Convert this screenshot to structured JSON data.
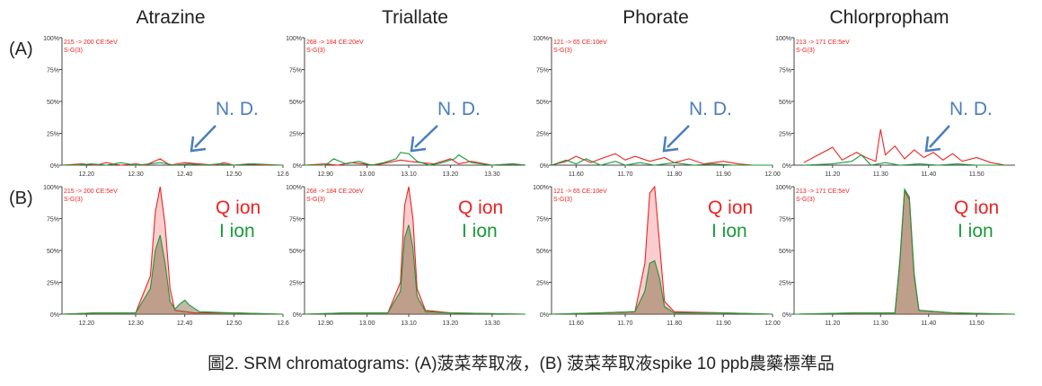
{
  "chart_data": [
    {
      "type": "line",
      "title": "Atrazine",
      "row": "(A)",
      "meta": [
        "215 -> 200 CE:5eV",
        "S-G(3)"
      ],
      "xticks": [
        "12.20",
        "12.30",
        "12.40",
        "12.50",
        "12.6"
      ],
      "xlim": [
        12.15,
        12.6
      ],
      "yticks": [
        "100%",
        "75%",
        "50%",
        "25%",
        "0%"
      ],
      "ylim": [
        0,
        100
      ],
      "annotation": "N. D.",
      "series": [
        {
          "color": "#ee2222",
          "x": [
            12.15,
            12.19,
            12.22,
            12.24,
            12.27,
            12.3,
            12.32,
            12.35,
            12.37,
            12.4,
            12.43,
            12.46,
            12.48,
            12.5,
            12.53,
            12.56,
            12.6
          ],
          "y": [
            0,
            1,
            0,
            2,
            0,
            1,
            0,
            5,
            0,
            2,
            1,
            0,
            2,
            0,
            1,
            0,
            0
          ]
        },
        {
          "color": "#1a9a3a",
          "x": [
            12.15,
            12.18,
            12.21,
            12.24,
            12.27,
            12.3,
            12.33,
            12.35,
            12.38,
            12.41,
            12.44,
            12.47,
            12.5,
            12.54,
            12.6
          ],
          "y": [
            0,
            0,
            1,
            0,
            2,
            0,
            1,
            2,
            0,
            1,
            0,
            1,
            0,
            1,
            0
          ]
        }
      ]
    },
    {
      "type": "line",
      "title": "Triallate",
      "row": "(A)",
      "meta": [
        "268 -> 184 CE:20eV",
        "S-G(3)"
      ],
      "xticks": [
        "12.90",
        "13.00",
        "13.10",
        "13.20",
        "13.30"
      ],
      "xlim": [
        12.85,
        13.38
      ],
      "yticks": [
        "100%",
        "75%",
        "50%",
        "25%",
        "0%"
      ],
      "ylim": [
        0,
        100
      ],
      "annotation": "N. D.",
      "series": [
        {
          "color": "#ee2222",
          "x": [
            12.85,
            12.9,
            12.93,
            12.96,
            12.99,
            13.02,
            13.05,
            13.08,
            13.1,
            13.13,
            13.16,
            13.2,
            13.22,
            13.25,
            13.3,
            13.35,
            13.38
          ],
          "y": [
            0,
            1,
            0,
            2,
            1,
            0,
            2,
            4,
            3,
            2,
            1,
            5,
            1,
            3,
            0,
            1,
            0
          ]
        },
        {
          "color": "#1a9a3a",
          "x": [
            12.85,
            12.9,
            12.92,
            12.95,
            12.98,
            13.01,
            13.04,
            13.07,
            13.08,
            13.1,
            13.12,
            13.15,
            13.18,
            13.21,
            13.22,
            13.25,
            13.3,
            13.35,
            13.38
          ],
          "y": [
            0,
            0,
            5,
            1,
            3,
            0,
            2,
            5,
            10,
            9,
            3,
            0,
            2,
            5,
            8,
            2,
            0,
            1,
            0
          ]
        }
      ]
    },
    {
      "type": "line",
      "title": "Phorate",
      "row": "(A)",
      "meta": [
        "121 -> 65 CE:10eV",
        "S-G(3)"
      ],
      "xticks": [
        "11.60",
        "11.70",
        "11.80",
        "11.90",
        "12.00"
      ],
      "xlim": [
        11.55,
        12.0
      ],
      "yticks": [
        "100%",
        "75%",
        "50%",
        "25%",
        "0%"
      ],
      "ylim": [
        0,
        100
      ],
      "annotation": "N. D.",
      "series": [
        {
          "color": "#ee2222",
          "x": [
            11.55,
            11.58,
            11.6,
            11.63,
            11.65,
            11.68,
            11.7,
            11.72,
            11.75,
            11.78,
            11.8,
            11.83,
            11.86,
            11.9,
            11.93,
            11.96,
            12.0
          ],
          "y": [
            0,
            3,
            7,
            2,
            5,
            9,
            4,
            7,
            3,
            6,
            2,
            5,
            1,
            3,
            1,
            0,
            0
          ]
        },
        {
          "color": "#1a9a3a",
          "x": [
            11.55,
            11.58,
            11.6,
            11.62,
            11.65,
            11.68,
            11.7,
            11.73,
            11.76,
            11.8,
            11.84,
            11.88,
            11.92,
            11.96,
            12.0
          ],
          "y": [
            0,
            4,
            1,
            5,
            0,
            3,
            0,
            2,
            0,
            2,
            0,
            1,
            0,
            0,
            0
          ]
        }
      ]
    },
    {
      "type": "line",
      "title": "Chlorpropham",
      "row": "(A)",
      "meta": [
        "213 -> 171 CE:5eV",
        "S-G(3)"
      ],
      "xticks": [
        "11.20",
        "11.30",
        "11.40",
        "11.50"
      ],
      "xlim": [
        11.12,
        11.58
      ],
      "yticks": [
        "100%",
        "75%",
        "50%",
        "25%",
        "0%"
      ],
      "ylim": [
        0,
        100
      ],
      "annotation": "N. D.",
      "series": [
        {
          "color": "#ee2222",
          "x": [
            11.14,
            11.17,
            11.2,
            11.22,
            11.25,
            11.27,
            11.29,
            11.3,
            11.31,
            11.33,
            11.35,
            11.37,
            11.39,
            11.41,
            11.43,
            11.45,
            11.47,
            11.5,
            11.53,
            11.56
          ],
          "y": [
            2,
            8,
            14,
            4,
            10,
            6,
            3,
            28,
            8,
            15,
            5,
            12,
            6,
            10,
            4,
            9,
            3,
            6,
            2,
            0
          ]
        },
        {
          "color": "#1a9a3a",
          "x": [
            11.14,
            11.2,
            11.24,
            11.26,
            11.28,
            11.31,
            11.34,
            11.38,
            11.42,
            11.46,
            11.5,
            11.56
          ],
          "y": [
            0,
            1,
            3,
            8,
            0,
            2,
            0,
            1,
            0,
            1,
            0,
            0
          ]
        }
      ]
    },
    {
      "type": "line",
      "title": "Atrazine",
      "row": "(B)",
      "meta": [
        "215 -> 200 CE:5eV",
        "S-G(3)"
      ],
      "xticks": [
        "12.20",
        "12.30",
        "12.40",
        "12.50",
        "12.6"
      ],
      "xlim": [
        12.15,
        12.6
      ],
      "yticks": [
        "100%",
        "75%",
        "50%",
        "25%",
        "0%"
      ],
      "ylim": [
        0,
        100
      ],
      "legend": [
        "Q ion",
        "I ion"
      ],
      "series": [
        {
          "color": "#ee2222",
          "x": [
            12.15,
            12.22,
            12.3,
            12.33,
            12.34,
            12.35,
            12.36,
            12.37,
            12.38,
            12.42,
            12.5,
            12.6
          ],
          "y": [
            0,
            1,
            1,
            30,
            80,
            100,
            70,
            20,
            3,
            1,
            1,
            0
          ]
        },
        {
          "color": "#1a9a3a",
          "x": [
            12.15,
            12.22,
            12.3,
            12.33,
            12.34,
            12.35,
            12.36,
            12.37,
            12.38,
            12.39,
            12.4,
            12.41,
            12.43,
            12.5,
            12.6
          ],
          "y": [
            0,
            1,
            1,
            20,
            50,
            62,
            40,
            10,
            4,
            8,
            11,
            7,
            2,
            1,
            0
          ]
        }
      ]
    },
    {
      "type": "line",
      "title": "Triallate",
      "row": "(B)",
      "meta": [
        "268 -> 184 CE:20eV",
        "S-G(3)"
      ],
      "xticks": [
        "12.90",
        "13.00",
        "13.10",
        "13.20",
        "13.30"
      ],
      "xlim": [
        12.85,
        13.38
      ],
      "yticks": [
        "100%",
        "75%",
        "50%",
        "25%",
        "0%"
      ],
      "ylim": [
        0,
        100
      ],
      "legend": [
        "Q ion",
        "I ion"
      ],
      "series": [
        {
          "color": "#ee2222",
          "x": [
            12.85,
            12.95,
            13.05,
            13.08,
            13.09,
            13.1,
            13.11,
            13.12,
            13.14,
            13.2,
            13.38
          ],
          "y": [
            0,
            1,
            1,
            25,
            85,
            100,
            75,
            20,
            3,
            1,
            0
          ]
        },
        {
          "color": "#1a9a3a",
          "x": [
            12.85,
            12.95,
            13.05,
            13.08,
            13.09,
            13.1,
            13.11,
            13.12,
            13.14,
            13.2,
            13.38
          ],
          "y": [
            0,
            1,
            1,
            18,
            60,
            70,
            52,
            14,
            2,
            1,
            0
          ]
        }
      ]
    },
    {
      "type": "line",
      "title": "Phorate",
      "row": "(B)",
      "meta": [
        "121 -> 65 CE:10eV",
        "S-G(3)"
      ],
      "xticks": [
        "11.60",
        "11.70",
        "11.80",
        "11.90",
        "12.00"
      ],
      "xlim": [
        11.55,
        12.0
      ],
      "yticks": [
        "100%",
        "75%",
        "50%",
        "25%",
        "0%"
      ],
      "ylim": [
        0,
        100
      ],
      "legend": [
        "Q ion",
        "I ion"
      ],
      "series": [
        {
          "color": "#ee2222",
          "x": [
            11.55,
            11.65,
            11.72,
            11.74,
            11.75,
            11.76,
            11.77,
            11.78,
            11.8,
            11.9,
            12.0
          ],
          "y": [
            0,
            1,
            2,
            40,
            95,
            100,
            55,
            10,
            2,
            1,
            0
          ]
        },
        {
          "color": "#1a9a3a",
          "x": [
            11.55,
            11.65,
            11.72,
            11.74,
            11.75,
            11.76,
            11.77,
            11.78,
            11.8,
            11.9,
            12.0
          ],
          "y": [
            0,
            1,
            2,
            18,
            40,
            42,
            28,
            6,
            1,
            1,
            0
          ]
        }
      ]
    },
    {
      "type": "line",
      "title": "Chlorpropham",
      "row": "(B)",
      "meta": [
        "213 -> 171 CE:5eV",
        "S-G(3)"
      ],
      "xticks": [
        "11.20",
        "11.30",
        "11.40",
        "11.50"
      ],
      "xlim": [
        11.12,
        11.58
      ],
      "yticks": [
        "100%",
        "75%",
        "50%",
        "25%",
        "0%"
      ],
      "ylim": [
        0,
        100
      ],
      "legend": [
        "Q ion",
        "I ion"
      ],
      "series": [
        {
          "color": "#ee2222",
          "x": [
            11.12,
            11.25,
            11.33,
            11.34,
            11.35,
            11.36,
            11.37,
            11.38,
            11.45,
            11.58
          ],
          "y": [
            0,
            1,
            1,
            40,
            97,
            90,
            30,
            3,
            1,
            0
          ]
        },
        {
          "color": "#1a9a3a",
          "x": [
            11.12,
            11.25,
            11.33,
            11.34,
            11.35,
            11.36,
            11.37,
            11.38,
            11.45,
            11.58
          ],
          "y": [
            0,
            1,
            1,
            42,
            98,
            92,
            32,
            3,
            1,
            0
          ]
        }
      ]
    }
  ],
  "row_labels": [
    "(A)",
    "(B)"
  ],
  "caption": "圖2. SRM chromatograms: (A)菠菜萃取液，(B) 菠菜萃取液spike 10 ppb農藥標準品"
}
